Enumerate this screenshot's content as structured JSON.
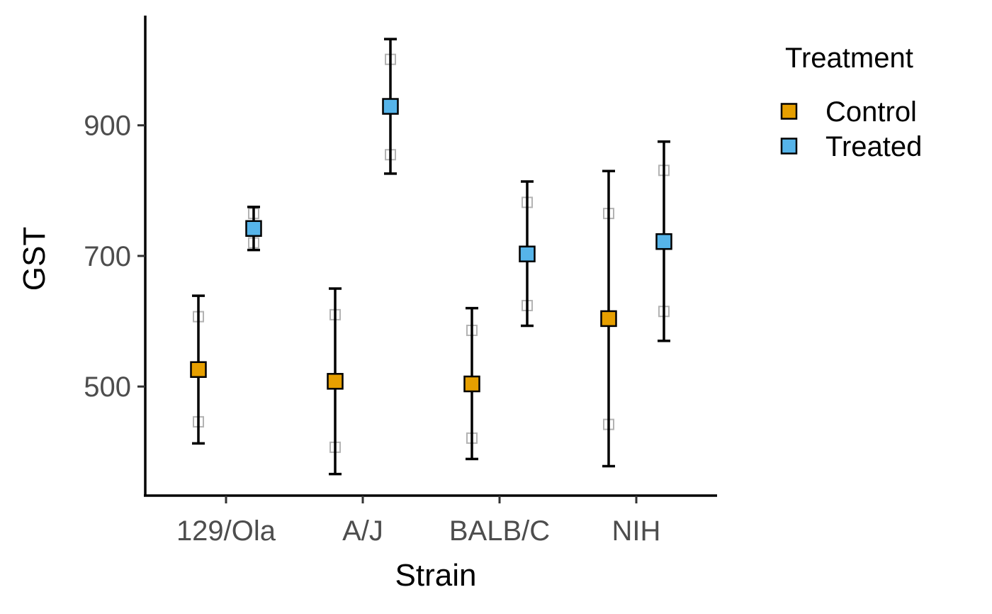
{
  "chart_data": {
    "type": "scatter",
    "xlabel": "Strain",
    "ylabel": "GST",
    "categories": [
      "129/Ola",
      "A/J",
      "BALB/C",
      "NIH"
    ],
    "y_ticks": [
      "500",
      "700",
      "900"
    ],
    "ylim": [
      333,
      1068
    ],
    "grid": false,
    "legend": {
      "title": "Treatment",
      "position": "right"
    },
    "colors": {
      "Control": "#E69F00",
      "Treated": "#56B4E9",
      "raw": "#b3b3b3",
      "errorbar": "#000000"
    },
    "series": [
      {
        "name": "Control",
        "means": [
          526,
          508,
          504,
          604
        ],
        "lower": [
          413,
          366,
          389,
          378
        ],
        "upper": [
          639,
          650,
          620,
          830
        ],
        "raw": [
          [
            607,
            446
          ],
          [
            610,
            407
          ],
          [
            586,
            421
          ],
          [
            765,
            442
          ]
        ]
      },
      {
        "name": "Treated",
        "means": [
          742,
          929,
          703,
          722
        ],
        "lower": [
          709,
          826,
          593,
          570
        ],
        "upper": [
          775,
          1032,
          814,
          875
        ],
        "raw": [
          [
            765,
            720
          ],
          [
            1001,
            855
          ],
          [
            782,
            624
          ],
          [
            831,
            615
          ]
        ]
      }
    ]
  }
}
